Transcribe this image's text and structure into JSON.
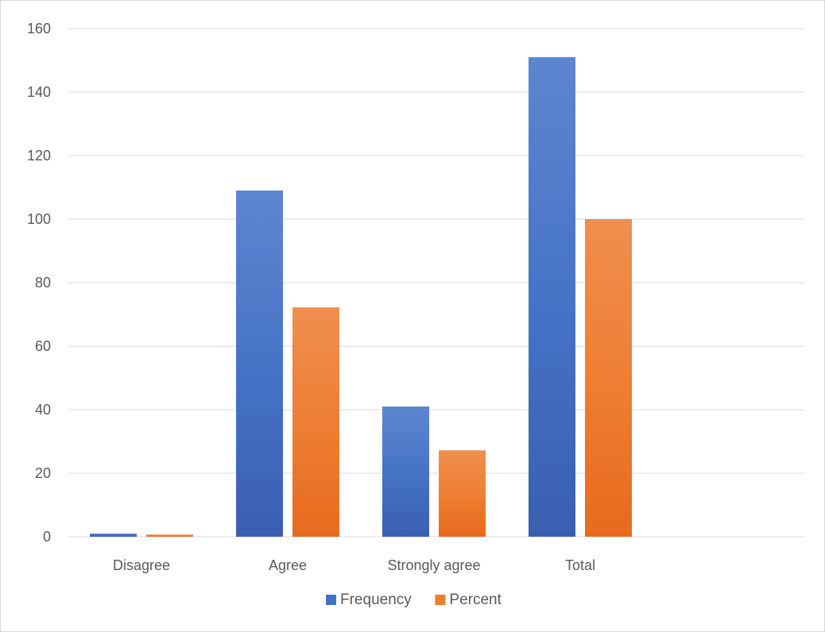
{
  "chart_data": {
    "type": "bar",
    "title": "",
    "xlabel": "",
    "ylabel": "",
    "categories": [
      "Disagree",
      "Agree",
      "Strongly agree",
      "Total"
    ],
    "series": [
      {
        "name": "Frequency",
        "values": [
          1,
          109,
          41,
          151
        ],
        "color": "#4472c4"
      },
      {
        "name": "Percent",
        "values": [
          0.7,
          72.2,
          27.2,
          100
        ],
        "color": "#ed7d31"
      }
    ],
    "ylim": [
      0,
      160
    ],
    "yticks": [
      0,
      20,
      40,
      60,
      80,
      100,
      120,
      140,
      160
    ],
    "grid": true,
    "legend_position": "bottom"
  }
}
